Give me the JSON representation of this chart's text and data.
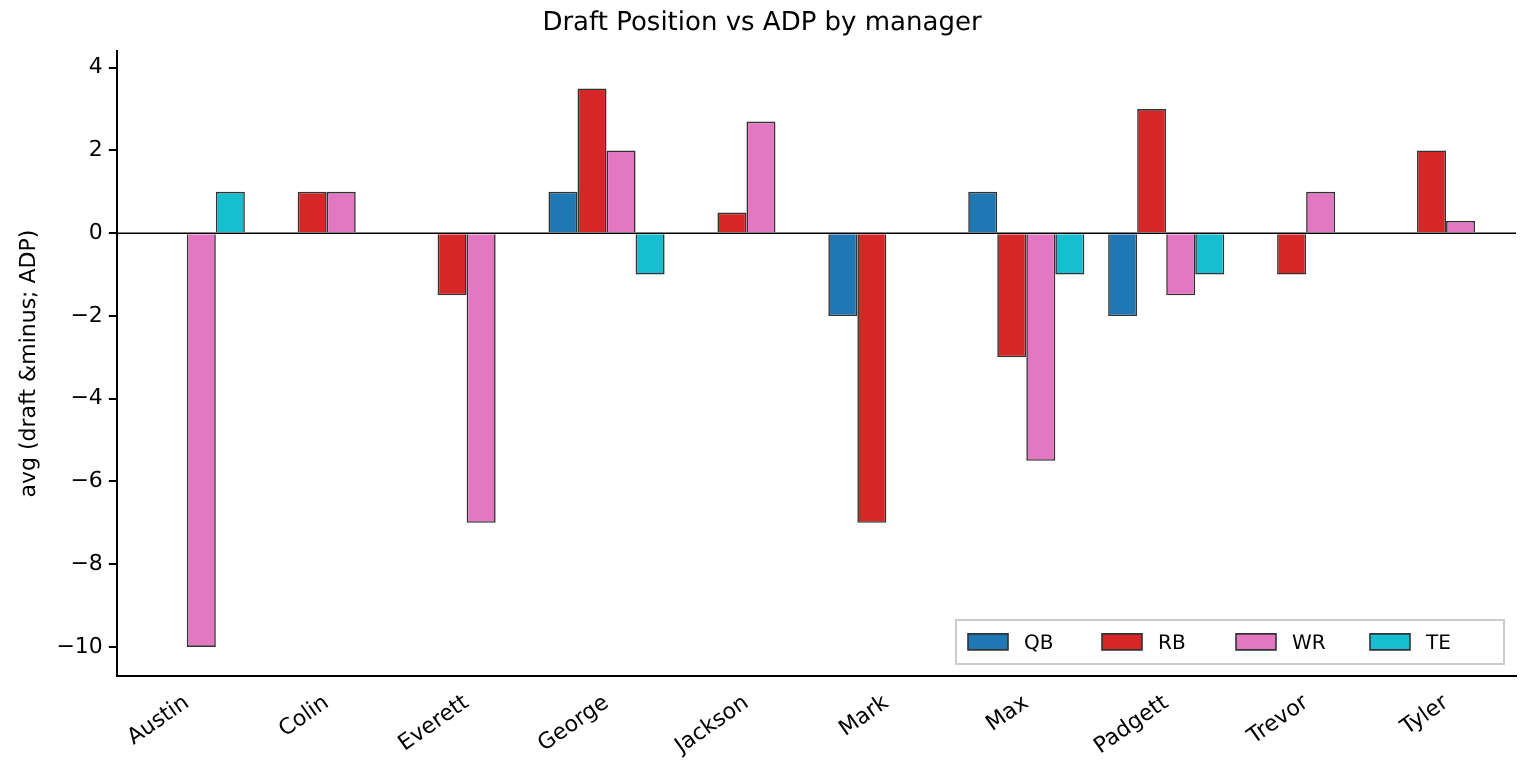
{
  "chart_data": {
    "type": "bar",
    "title": "Draft Position vs ADP by manager",
    "ylabel": "avg (draft &minus; ADP)",
    "categories": [
      "Austin",
      "Colin",
      "Everett",
      "George",
      "Jackson",
      "Mark",
      "Max",
      "Padgett",
      "Trevor",
      "Tyler"
    ],
    "series": [
      {
        "name": "QB",
        "color": "#1f77b4",
        "values": [
          0,
          0,
          0,
          1,
          0,
          -2,
          1,
          -2,
          0,
          0
        ]
      },
      {
        "name": "RB",
        "color": "#d62728",
        "values": [
          0,
          1,
          -1.5,
          3.5,
          0.5,
          -7,
          -3,
          3,
          -1,
          2
        ]
      },
      {
        "name": "WR",
        "color": "#e377c2",
        "values": [
          -10,
          1,
          -7,
          2,
          2.7,
          0,
          -5.5,
          -1.5,
          1,
          0.3
        ]
      },
      {
        "name": "TE",
        "color": "#17becf",
        "values": [
          1,
          0,
          0,
          -1,
          0,
          0,
          -1,
          -1,
          0,
          0
        ]
      }
    ],
    "ylim": [
      -10.7,
      4.4
    ],
    "yticks": [
      -10,
      -8,
      -6,
      -4,
      -2,
      0,
      2,
      4
    ],
    "grid": false,
    "legend": "bottom right",
    "ref_lines": [
      {
        "axis": "y",
        "value": 0,
        "color": "#000000"
      }
    ]
  }
}
